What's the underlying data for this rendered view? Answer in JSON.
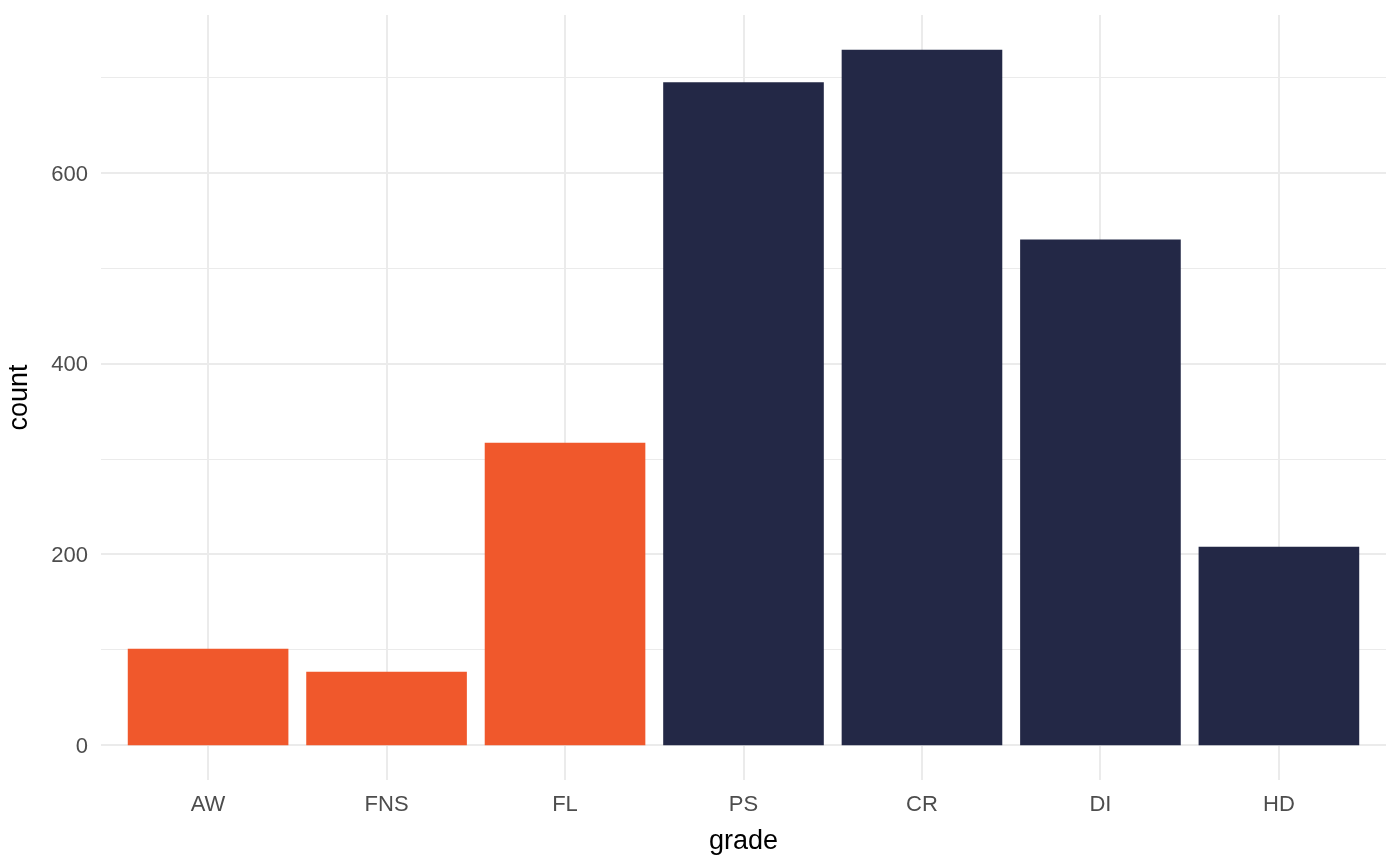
{
  "chart_data": {
    "type": "bar",
    "xlabel": "grade",
    "ylabel": "count",
    "categories": [
      "AW",
      "FNS",
      "FL",
      "PS",
      "CR",
      "DI",
      "HD"
    ],
    "values": [
      101,
      77,
      317,
      695,
      729,
      530,
      208
    ],
    "colors": [
      "#f0582c",
      "#f0582c",
      "#f0582c",
      "#232846",
      "#232846",
      "#232846",
      "#232846"
    ],
    "ylim": [
      -36.45,
      765.45
    ],
    "yticks": [
      0,
      200,
      400,
      600,
      {
        "value": 100,
        "label": null
      },
      {
        "value": 300,
        "label": null
      },
      {
        "value": 500,
        "label": null
      },
      {
        "value": 700,
        "label": null
      }
    ],
    "grid": true
  }
}
